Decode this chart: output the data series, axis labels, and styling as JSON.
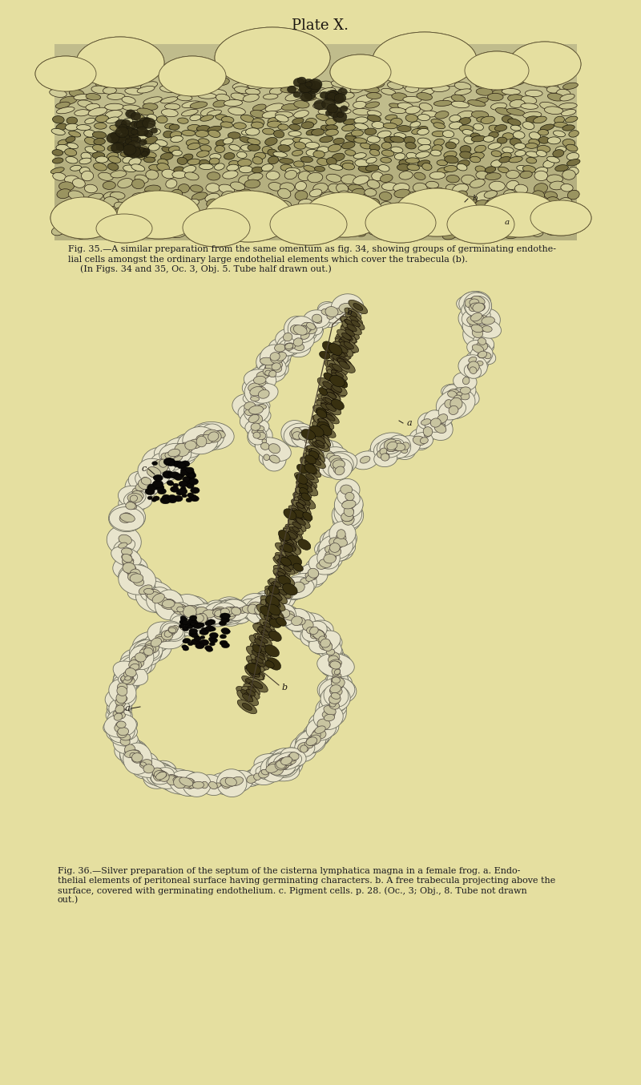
{
  "bg_color": "#e5dfa0",
  "title": "Plate X.",
  "title_fontsize": 13,
  "fig_width": 8.0,
  "fig_height": 13.54,
  "dpi": 100,
  "caption1_line1": "Fig. 35.—A similar preparation from the same omentum as fig. 34, showing groups of germinating endothe-",
  "caption1_line2": "lial cells amongst the ordinary large endothelial elements which cover the trabecula (b).",
  "caption1_line3": "(In Figs. 34 and 35, Oc. 3, Obj. 5. Tube half drawn out.)",
  "caption2_line1": "Fig. 36.—Silver preparation of the septum of the ​cisterna lymphatica magna​ in a female frog. a. Endo-",
  "caption2_line2": "thelial elements of peritoneal surface having germinating characters. b. A free trabecula projecting above the",
  "caption2_line3": "surface, covered with germinating endothelium. c. Pigment cells. p. 28. (Oc., 3; Obj., 8. Tube not drawn",
  "caption2_line4": "out.)",
  "caption_fontsize": 8.0,
  "cell_color_light": "#c8c49a",
  "cell_color_mid": "#a09870",
  "cell_color_dark": "#706848",
  "cell_edge": "#3a3020",
  "lacuna_color": "#f0ead8",
  "tissue_bg": "#b8b490"
}
